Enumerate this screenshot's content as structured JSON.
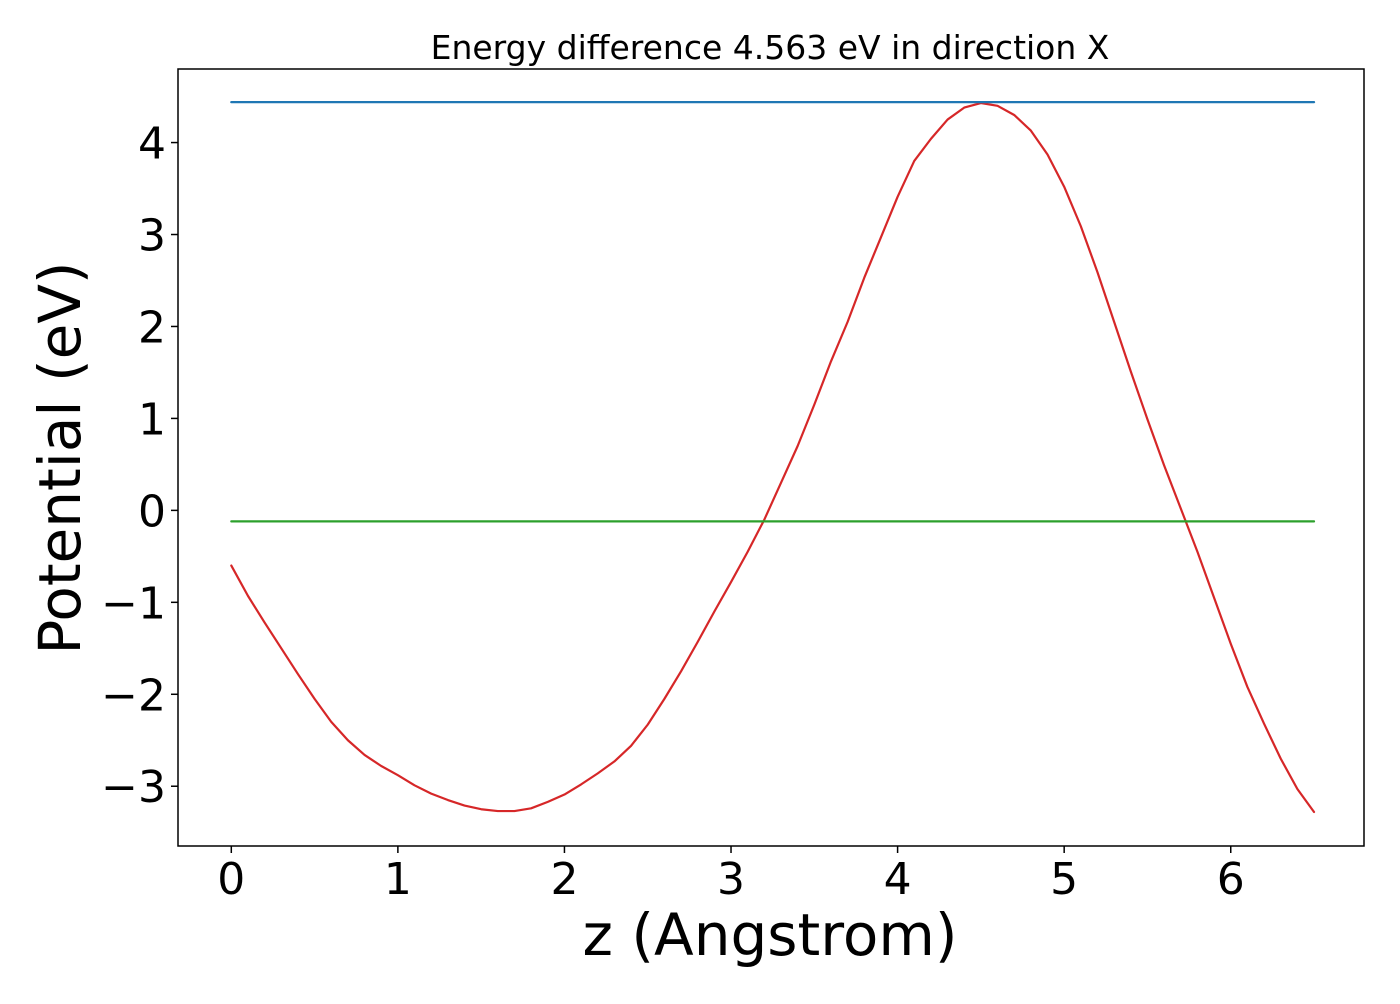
{
  "chart_data": {
    "type": "line",
    "title": "Energy difference 4.563 eV in direction X",
    "xlabel": "z (Angstrom)",
    "ylabel": "Potential (eV)",
    "xlim": [
      -0.32,
      6.8
    ],
    "ylim": [
      -3.65,
      4.8
    ],
    "xticks": [
      {
        "value": 0,
        "label": "0"
      },
      {
        "value": 1,
        "label": "1"
      },
      {
        "value": 2,
        "label": "2"
      },
      {
        "value": 3,
        "label": "3"
      },
      {
        "value": 4,
        "label": "4"
      },
      {
        "value": 5,
        "label": "5"
      },
      {
        "value": 6,
        "label": "6"
      }
    ],
    "yticks": [
      {
        "value": -3,
        "label": "−3"
      },
      {
        "value": -2,
        "label": "−2"
      },
      {
        "value": -1,
        "label": "−1"
      },
      {
        "value": 0,
        "label": "0"
      },
      {
        "value": 1,
        "label": "1"
      },
      {
        "value": 2,
        "label": "2"
      },
      {
        "value": 3,
        "label": "3"
      },
      {
        "value": 4,
        "label": "4"
      }
    ],
    "grid": false,
    "series": [
      {
        "color": "#d62728",
        "x": [
          0,
          0.1,
          0.2,
          0.3,
          0.4,
          0.5,
          0.6,
          0.7,
          0.8,
          0.9,
          1.0,
          1.1,
          1.2,
          1.3,
          1.4,
          1.5,
          1.6,
          1.7,
          1.8,
          1.9,
          2.0,
          2.1,
          2.2,
          2.3,
          2.4,
          2.5,
          2.6,
          2.7,
          2.8,
          2.9,
          3.0,
          3.1,
          3.2,
          3.3,
          3.4,
          3.5,
          3.6,
          3.7,
          3.8,
          3.9,
          4.0,
          4.1,
          4.2,
          4.3,
          4.4,
          4.5,
          4.6,
          4.7,
          4.8,
          4.9,
          5.0,
          5.1,
          5.2,
          5.3,
          5.4,
          5.5,
          5.6,
          5.7,
          5.8,
          5.9,
          6.0,
          6.1,
          6.2,
          6.3,
          6.4,
          6.5
        ],
        "y": [
          -0.6,
          -0.93,
          -1.22,
          -1.5,
          -1.78,
          -2.05,
          -2.3,
          -2.5,
          -2.66,
          -2.78,
          -2.88,
          -2.99,
          -3.08,
          -3.15,
          -3.21,
          -3.25,
          -3.27,
          -3.27,
          -3.24,
          -3.17,
          -3.09,
          -2.98,
          -2.86,
          -2.73,
          -2.56,
          -2.33,
          -2.05,
          -1.75,
          -1.43,
          -1.1,
          -0.78,
          -0.45,
          -0.1,
          0.3,
          0.7,
          1.15,
          1.62,
          2.05,
          2.53,
          2.97,
          3.41,
          3.8,
          4.04,
          4.25,
          4.38,
          4.43,
          4.4,
          4.3,
          4.13,
          3.87,
          3.52,
          3.09,
          2.59,
          2.05,
          1.51,
          0.99,
          0.49,
          0.02,
          -0.45,
          -0.95,
          -1.45,
          -1.92,
          -2.32,
          -2.7,
          -3.03,
          -3.28
        ]
      },
      {
        "color": "#1f77b4",
        "x": [
          0,
          6.5
        ],
        "y": [
          4.44,
          4.44
        ]
      },
      {
        "color": "#2ca02c",
        "x": [
          0,
          6.5
        ],
        "y": [
          -0.12,
          -0.12
        ]
      }
    ]
  }
}
